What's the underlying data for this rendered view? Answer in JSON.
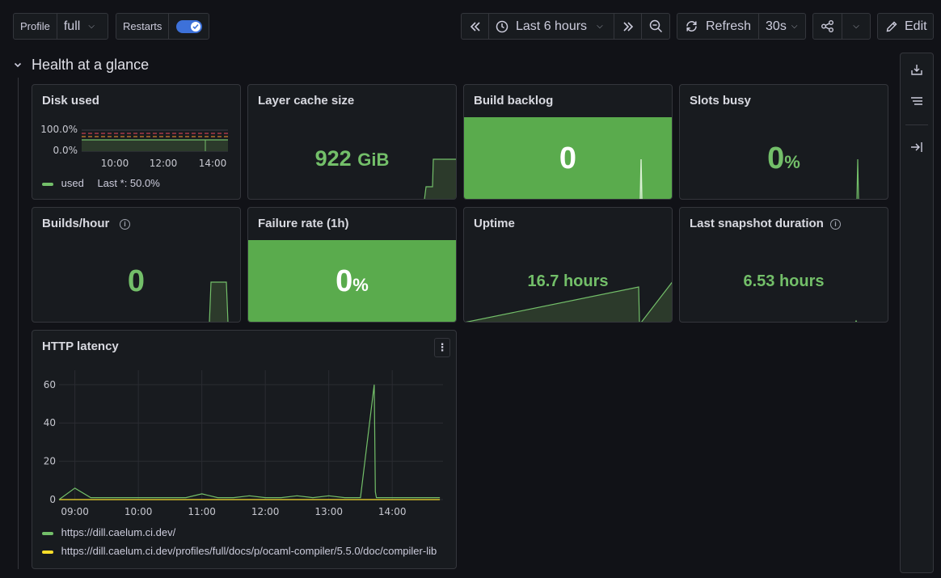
{
  "toolbar": {
    "profile_label": "Profile",
    "profile_value": "full",
    "restarts_label": "Restarts",
    "restarts_enabled": true,
    "time_range": "Last 6 hours",
    "refresh_label": "Refresh",
    "refresh_interval": "30s",
    "edit_label": "Edit"
  },
  "row": {
    "title": "Health at a glance"
  },
  "panels": {
    "disk_used": {
      "title": "Disk used",
      "y_ticks": [
        "100.0%",
        "0.0%"
      ],
      "x_ticks": [
        "10:00",
        "12:00",
        "14:00"
      ],
      "legend_name": "used",
      "legend_last": "Last *: 50.0%"
    },
    "layer_cache": {
      "title": "Layer cache size",
      "value": "922",
      "unit": "GiB"
    },
    "build_backlog": {
      "title": "Build backlog",
      "value": "0"
    },
    "slots_busy": {
      "title": "Slots busy",
      "value": "0",
      "unit": "%"
    },
    "builds_hour": {
      "title": "Builds/hour",
      "value": "0"
    },
    "failure_rate": {
      "title": "Failure rate (1h)",
      "value": "0",
      "unit": "%"
    },
    "uptime": {
      "title": "Uptime",
      "value": "16.7 hours"
    },
    "last_snapshot": {
      "title": "Last snapshot duration",
      "value": "6.53 hours"
    },
    "http_latency": {
      "title": "HTTP latency",
      "legend": [
        "https://dill.caelum.ci.dev/",
        "https://dill.caelum.ci.dev/profiles/full/docs/p/ocaml-compiler/5.5.0/doc/compiler-lib"
      ]
    }
  },
  "colors": {
    "green": "#73bf69",
    "yellow": "#fade2a",
    "blue": "#3d71d9",
    "panel": "#181b1f",
    "background": "#111217"
  },
  "chart_data": {
    "type": "line",
    "ylim": [
      0,
      65
    ],
    "y_ticks": [
      "0",
      "20",
      "40",
      "60"
    ],
    "x_ticks": [
      "09:00",
      "10:00",
      "11:00",
      "12:00",
      "13:00",
      "14:00"
    ],
    "series": [
      {
        "name": "https://dill.caelum.ci.dev/",
        "color": "#73bf69",
        "x": [
          "08:45",
          "09:00",
          "09:15",
          "09:30",
          "09:45",
          "10:00",
          "10:15",
          "10:30",
          "10:45",
          "11:00",
          "11:15",
          "11:30",
          "11:45",
          "12:00",
          "12:15",
          "12:30",
          "12:45",
          "13:00",
          "13:15",
          "13:30",
          "13:43",
          "13:44",
          "13:45",
          "14:00",
          "14:15",
          "14:30",
          "14:45"
        ],
        "values": [
          0,
          6,
          1,
          1,
          1,
          1,
          1,
          1,
          1,
          3,
          1,
          1,
          2,
          1,
          1,
          2,
          1,
          2,
          1,
          1,
          60,
          4,
          1,
          1,
          1,
          1,
          1
        ]
      },
      {
        "name": "https://dill.caelum.ci.dev/profiles/full/docs/p/ocaml-compiler/5.5.0/doc/compiler-lib",
        "color": "#fade2a",
        "x": [
          "08:45",
          "14:45"
        ],
        "values": [
          0,
          0
        ]
      }
    ]
  }
}
